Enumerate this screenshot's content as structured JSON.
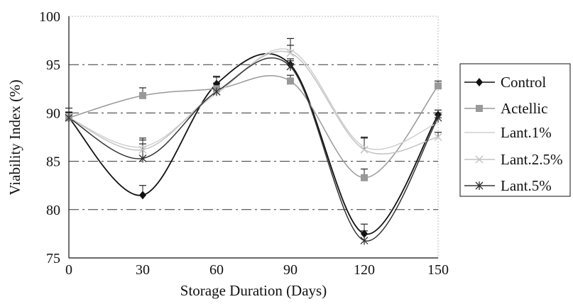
{
  "chart_data": {
    "type": "line",
    "xlabel": "Storage Duration (Days)",
    "ylabel": "Viability Index (%)",
    "x": [
      0,
      30,
      60,
      90,
      120,
      150
    ],
    "xlim": [
      0,
      150
    ],
    "ylim": [
      75,
      100
    ],
    "x_ticks": [
      "0",
      "30",
      "60",
      "90",
      "120",
      "150"
    ],
    "y_ticks": [
      "75",
      "80",
      "85",
      "90",
      "95",
      "100"
    ],
    "grid": "horizontal dashed",
    "legend_position": "right",
    "series": [
      {
        "name": "Control",
        "values": [
          89.5,
          81.5,
          93.0,
          95.0,
          77.5,
          89.8
        ],
        "color": "#111111",
        "marker": "diamond",
        "errors": [
          1.0,
          1.0,
          0.8,
          0.6,
          1.0,
          0.5
        ]
      },
      {
        "name": "Actellic",
        "values": [
          89.5,
          91.8,
          92.5,
          93.3,
          83.3,
          92.8
        ],
        "color": "#999999",
        "marker": "square",
        "errors": [
          0.6,
          0.8,
          0.6,
          0.6,
          0.9,
          0.5
        ]
      },
      {
        "name": "Lant.1%",
        "values": [
          89.5,
          86.5,
          92.0,
          96.5,
          86.5,
          89.0
        ],
        "color": "#cfcfcf",
        "marker": "none",
        "errors": [
          0.5,
          0.9,
          0.5,
          1.2,
          1.0,
          0.5
        ]
      },
      {
        "name": "Lant.2.5%",
        "values": [
          89.5,
          86.2,
          92.2,
          96.2,
          86.2,
          87.5
        ],
        "color": "#c4c4c4",
        "marker": "x",
        "errors": [
          0.5,
          1.0,
          0.5,
          0.8,
          1.2,
          0.5
        ]
      },
      {
        "name": "Lant.5%",
        "values": [
          89.5,
          85.3,
          92.2,
          94.8,
          76.8,
          89.5
        ],
        "color": "#333333",
        "marker": "star",
        "errors": [
          0.6,
          1.5,
          1.5,
          0.6,
          1.0,
          0.5
        ]
      }
    ]
  }
}
